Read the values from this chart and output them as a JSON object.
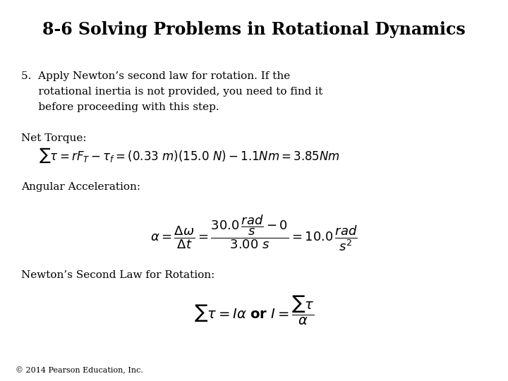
{
  "title": "8-6 Solving Problems in Rotational Dynamics",
  "background_color": "#ffffff",
  "text_color": "#000000",
  "copyright": "© 2014 Pearson Education, Inc.",
  "title_fontsize": 17,
  "body_fontsize": 11,
  "eq_fontsize": 12,
  "small_fontsize": 8,
  "step5_line1": "5.  Apply Newton’s second law for rotation. If the",
  "step5_line2": "     rotational inertia is not provided, you need to find it",
  "step5_line3": "     before proceeding with this step.",
  "net_torque_label": "Net Torque:",
  "ang_accel_label": "Angular Acceleration:",
  "newton_label": "Newton’s Second Law for Rotation:"
}
